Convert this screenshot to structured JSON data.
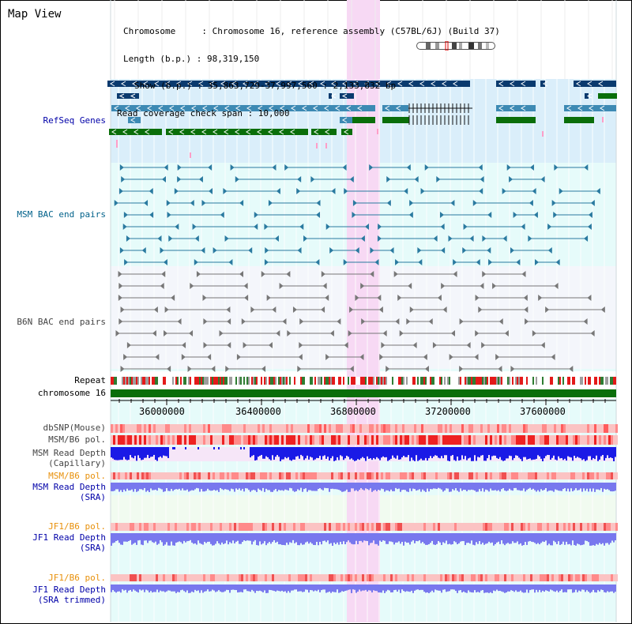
{
  "title": "Map View",
  "info": {
    "chromosome": "Chromosome     : Chromosome 16, reference assembly (C57BL/6J) (Build 37)",
    "length": "Length (b.p.) : 98,319,150",
    "show": "Show (b.p.) : 35,863,729-37,997,560 : 2,133,832 bp",
    "coverage": "Read coverage check span : 10,000"
  },
  "tracks": {
    "refseq": "RefSeq Genes",
    "msm_bac": "MSM BAC end pairs",
    "b6n_bac": "B6N BAC end pairs",
    "repeat": "Repeat",
    "chromosome": "chromosome 16",
    "dbsnp": "dbSNP(Mouse)",
    "msm_b6_pol_1": "MSM/B6 pol.",
    "msm_depth_cap_1": "MSM Read Depth",
    "msm_depth_cap_2": "(Capillary)",
    "msm_b6_pol_2": "MSM/B6 pol.",
    "msm_depth_sra_1": "MSM Read Depth",
    "msm_depth_sra_2": "(SRA)",
    "jf1_b6_pol_1": "JF1/B6 pol.",
    "jf1_depth_sra_1": "JF1 Read Depth",
    "jf1_depth_sra_2": "(SRA)",
    "jf1_b6_pol_2": "JF1/B6 pol.",
    "jf1_depth_trim_1": "JF1 Read Depth",
    "jf1_depth_trim_2": "(SRA trimmed)"
  },
  "axis": {
    "ticks": [
      "36000000",
      "36400000",
      "36800000",
      "37200000",
      "37600000"
    ]
  },
  "colors": {
    "refseq_bg": "#daeefa",
    "bac_bg": "#e6fbfa",
    "highlight": "#f7d9f4",
    "gene_dark": "#0a3a6e",
    "gene_mid": "#3d8ab4",
    "gene_green": "#0a6e0a",
    "bac_msm": "#2a7aa0",
    "bac_b6n": "#666666",
    "depth_blue": "#1a1ae6",
    "depth_light": "#7878ee",
    "label_blue": "#0000a8",
    "label_orange": "#e8900a"
  }
}
